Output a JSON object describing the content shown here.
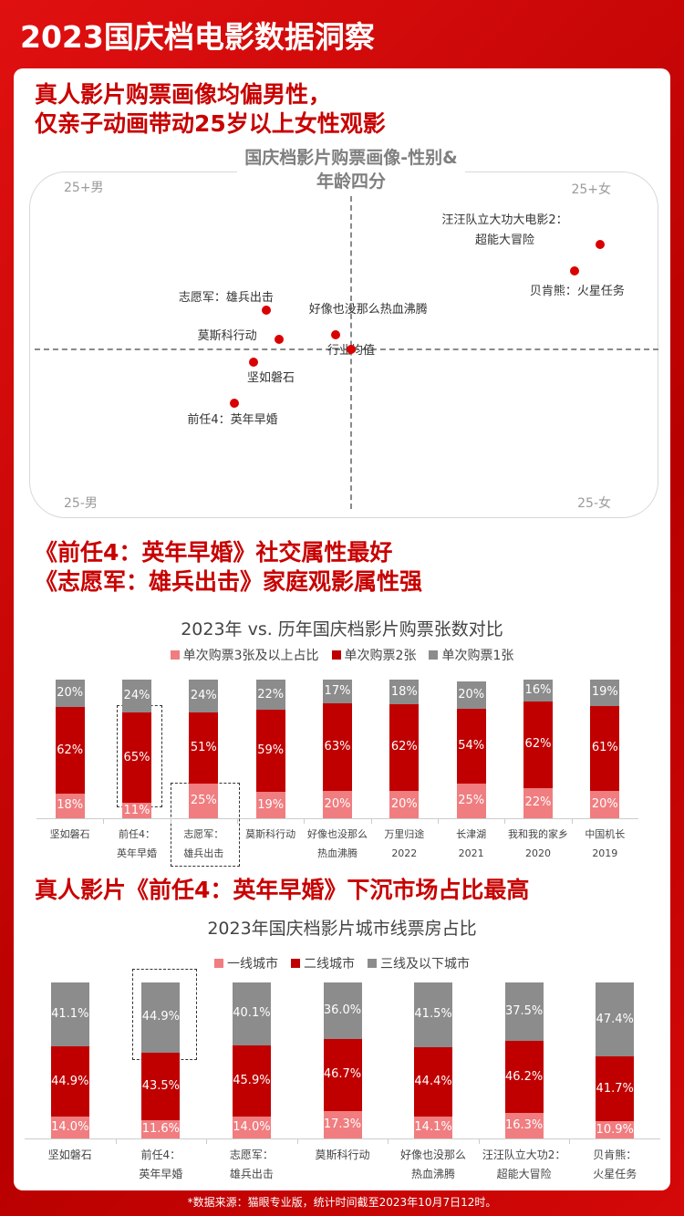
{
  "header": {
    "title": "2023国庆档电影数据洞察"
  },
  "sections": [
    {
      "headline": [
        "真人影片购票画像均偏男性，",
        "仅亲子动画带动25岁以上女性观影"
      ]
    },
    {
      "headline": [
        "《前任4：英年早婚》社交属性最好",
        "《志愿军：雄兵出击》家庭观影属性强"
      ]
    },
    {
      "headline": [
        "真人影片《前任4：英年早婚》下沉市场占比最高"
      ]
    }
  ],
  "chart_data": [
    {
      "type": "scatter",
      "title": "国庆档影片购票画像-性别&年龄四分",
      "quadrant_labels": [
        "25+男",
        "25+女",
        "25-男",
        "25-女"
      ],
      "labels": [
        "汪汪队立大功大电影2：超能大冒险",
        "贝肯熊：火星任务",
        "志愿军：雄兵出击",
        "好像也没那么热血沸腾",
        "莫斯科行动",
        "行业均值",
        "坚如磐石",
        "前任4：英年早婚"
      ],
      "x": [
        79,
        71,
        -27,
        -5,
        -23,
        0,
        -31,
        -37
      ],
      "values": [
        64,
        48,
        24,
        9,
        6,
        0,
        -8,
        -33
      ],
      "color": "#d90000",
      "xlim": [
        -100,
        100
      ],
      "ylim": [
        -100,
        100
      ]
    },
    {
      "type": "bar",
      "stacked": true,
      "title": "2023年  vs. 历年国庆档影片购票张数对比",
      "categories": [
        "坚如磐石",
        "前任4：\n英年早婚",
        "志愿军：\n雄兵出击",
        "莫斯科行动",
        "好像也没那么\n热血沸腾",
        "万里归途\n2022",
        "长津湖\n2021",
        "我和我的家乡\n2020",
        "中国机长\n2019"
      ],
      "series": [
        {
          "name": "单次购票3张及以上占比",
          "color": "#f07d80",
          "values": [
            18,
            11,
            25,
            19,
            20,
            20,
            25,
            22,
            20
          ],
          "value_labels": [
            "18%",
            "11%",
            "25%",
            "19%",
            "20%",
            "20%",
            "25%",
            "22%",
            "20%"
          ]
        },
        {
          "name": "单次购票2张",
          "color": "#c00000",
          "values": [
            62,
            65,
            51,
            59,
            63,
            62,
            54,
            62,
            61
          ],
          "value_labels": [
            "62%",
            "65%",
            "51%",
            "59%",
            "63%",
            "62%",
            "54%",
            "62%",
            "61%"
          ]
        },
        {
          "name": "单次购票1张",
          "color": "#8c8c8c",
          "values": [
            20,
            24,
            24,
            22,
            17,
            18,
            20,
            16,
            19
          ],
          "value_labels": [
            "20%",
            "24%",
            "24%",
            "22%",
            "17%",
            "18%",
            "20%",
            "16%",
            "19%"
          ]
        }
      ],
      "ylim": [
        0,
        100
      ]
    },
    {
      "type": "bar",
      "stacked": true,
      "title": "2023年国庆档影片城市线票房占比",
      "categories": [
        "坚如磐石",
        "前任4：\n英年早婚",
        "志愿军：\n雄兵出击",
        "莫斯科行动",
        "好像也没那么\n热血沸腾",
        "汪汪队立大功2：\n超能大冒险",
        "贝肯熊：\n火星任务"
      ],
      "series": [
        {
          "name": "一线城市",
          "color": "#f07d80",
          "values": [
            14.0,
            11.6,
            14.0,
            17.3,
            14.1,
            16.3,
            10.9
          ],
          "value_labels": [
            "14.0%",
            "11.6%",
            "14.0%",
            "17.3%",
            "14.1%",
            "16.3%",
            "10.9%"
          ]
        },
        {
          "name": "二线城市",
          "color": "#c00000",
          "values": [
            44.9,
            43.5,
            45.9,
            46.7,
            44.4,
            46.2,
            41.7
          ],
          "value_labels": [
            "44.9%",
            "43.5%",
            "45.9%",
            "46.7%",
            "44.4%",
            "46.2%",
            "41.7%"
          ]
        },
        {
          "name": "三线及以下城市",
          "color": "#8c8c8c",
          "values": [
            41.1,
            44.9,
            40.1,
            36.0,
            41.5,
            37.5,
            47.4
          ],
          "value_labels": [
            "41.1%",
            "44.9%",
            "40.1%",
            "36.0%",
            "41.5%",
            "37.5%",
            "47.4%"
          ]
        }
      ],
      "ylim": [
        0,
        100
      ]
    }
  ],
  "footer": "*数据来源：猫眼专业版，统计时间截至2023年10月7日12时。"
}
